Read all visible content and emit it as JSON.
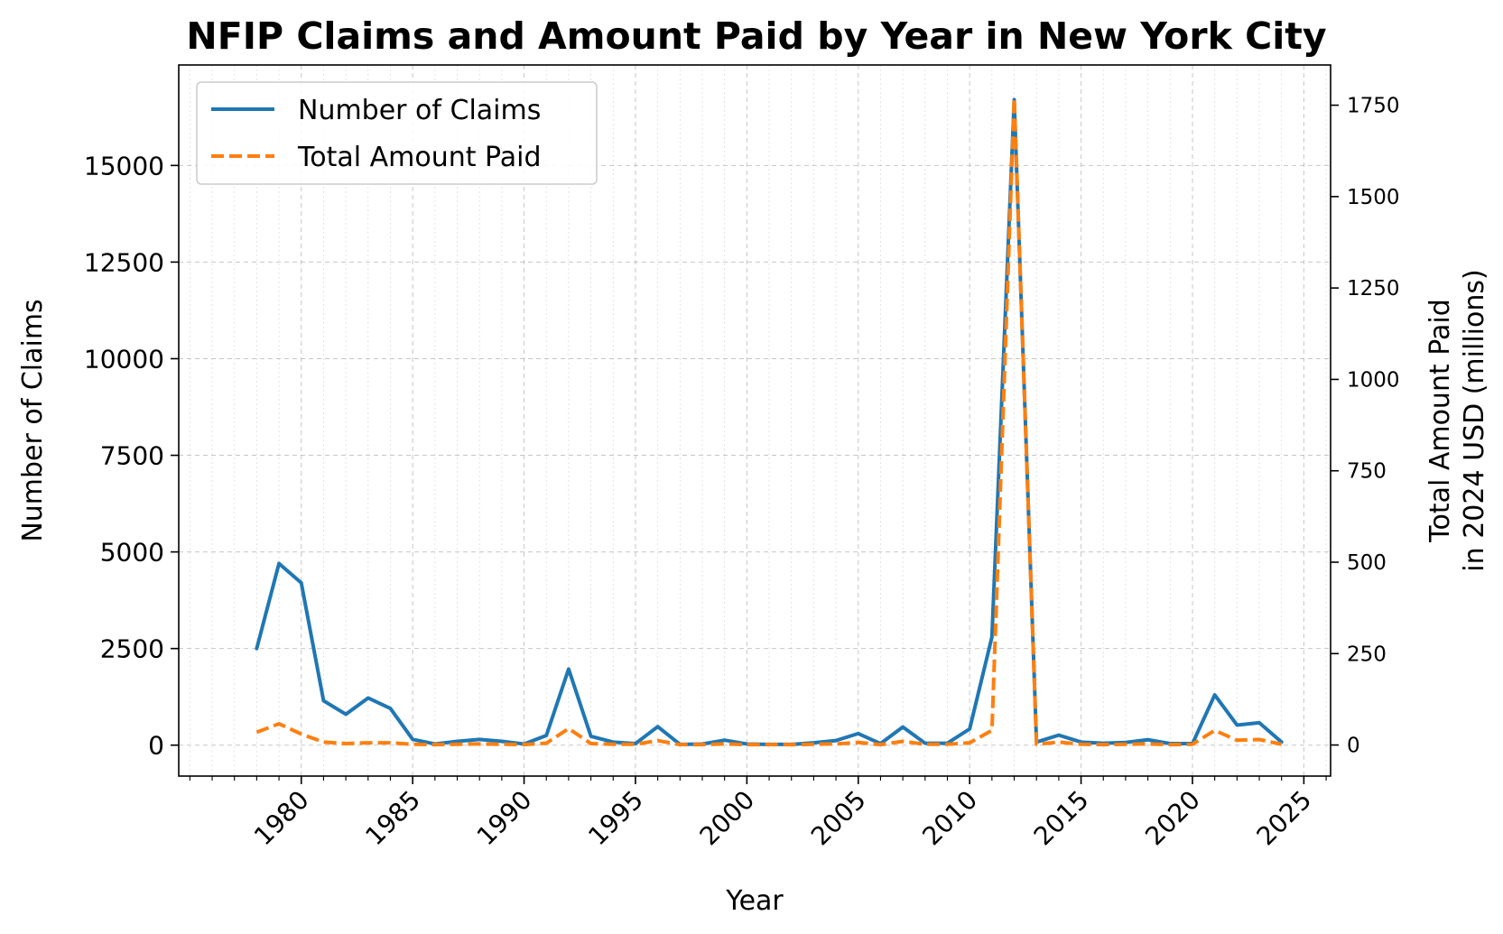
{
  "chart_data": {
    "type": "line",
    "title": "NFIP Claims and Amount Paid by Year in New York City",
    "xlabel": "Year",
    "ylabel": "Number of Claims",
    "y2label_line1": "Total Amount Paid",
    "y2label_line2": "in 2024 USD (millions)",
    "xlim": [
      1974.5,
      2026.2
    ],
    "ylim": [
      -800,
      17600
    ],
    "y2lim": [
      -85,
      1860
    ],
    "x_ticks": [
      1980,
      1985,
      1990,
      1995,
      2000,
      2005,
      2010,
      2015,
      2020,
      2025
    ],
    "y_ticks": [
      0,
      2500,
      5000,
      7500,
      10000,
      12500,
      15000
    ],
    "y2_ticks": [
      0,
      250,
      500,
      750,
      1000,
      1250,
      1500,
      1750
    ],
    "grid": true,
    "legend_position": "upper left",
    "x": [
      1978,
      1979,
      1980,
      1981,
      1982,
      1983,
      1984,
      1985,
      1986,
      1987,
      1988,
      1989,
      1990,
      1991,
      1992,
      1993,
      1994,
      1995,
      1996,
      1997,
      1998,
      1999,
      2000,
      2001,
      2002,
      2003,
      2004,
      2005,
      2006,
      2007,
      2008,
      2009,
      2010,
      2011,
      2012,
      2013,
      2014,
      2015,
      2016,
      2017,
      2018,
      2019,
      2020,
      2021,
      2022,
      2023,
      2024
    ],
    "series": [
      {
        "name": "Number of Claims",
        "axis": "left",
        "color": "#1f77b4",
        "style": "solid",
        "values": [
          2500,
          4700,
          4200,
          1150,
          800,
          1220,
          950,
          150,
          30,
          100,
          150,
          100,
          30,
          250,
          1970,
          230,
          80,
          40,
          480,
          20,
          30,
          130,
          30,
          20,
          20,
          60,
          120,
          300,
          40,
          470,
          50,
          50,
          420,
          2800,
          16700,
          80,
          260,
          80,
          50,
          70,
          140,
          40,
          40,
          1300,
          520,
          580,
          80
        ]
      },
      {
        "name": "Total Amount Paid",
        "axis": "right",
        "color": "#ff7f0e",
        "style": "dashed",
        "values": [
          35,
          58,
          30,
          8,
          4,
          6,
          6,
          2,
          1,
          2,
          3,
          2,
          1,
          5,
          45,
          4,
          2,
          2,
          12,
          1,
          1,
          3,
          1,
          1,
          1,
          2,
          3,
          7,
          1,
          10,
          2,
          2,
          6,
          40,
          1770,
          2,
          8,
          2,
          1,
          2,
          3,
          1,
          2,
          40,
          13,
          15,
          2
        ]
      }
    ]
  }
}
